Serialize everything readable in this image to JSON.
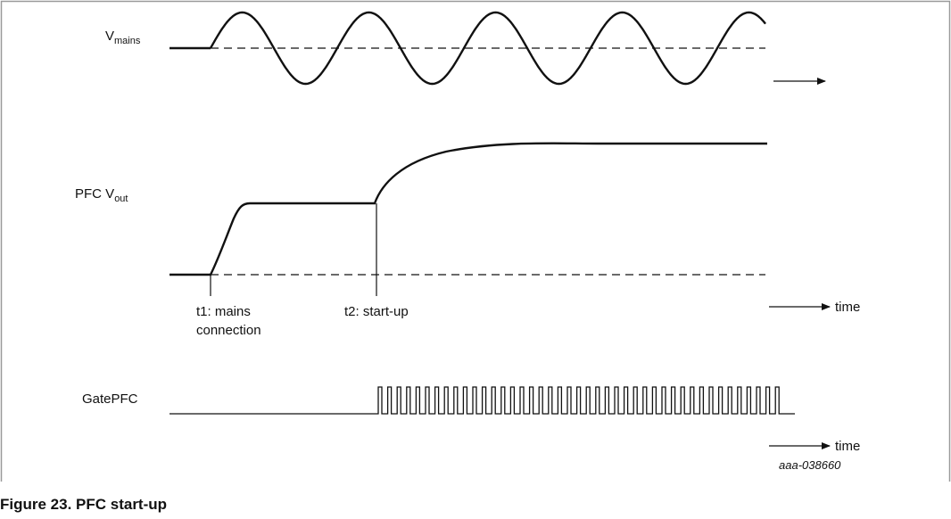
{
  "signals": {
    "vmains": {
      "main": "V",
      "sub": "mains"
    },
    "pfc_vout": {
      "prefix": "PFC V",
      "sub": "out"
    },
    "gate": "GatePFC"
  },
  "annotations": {
    "t1_line1": "t1: mains",
    "t1_line2": "connection",
    "t2": "t2: start-up",
    "time_1": "time",
    "time_2": "time"
  },
  "figure": {
    "code": "aaa-038660",
    "caption": "Figure 23.  PFC start-up"
  },
  "colors": {
    "line": "#111111",
    "frame": "#999999"
  }
}
